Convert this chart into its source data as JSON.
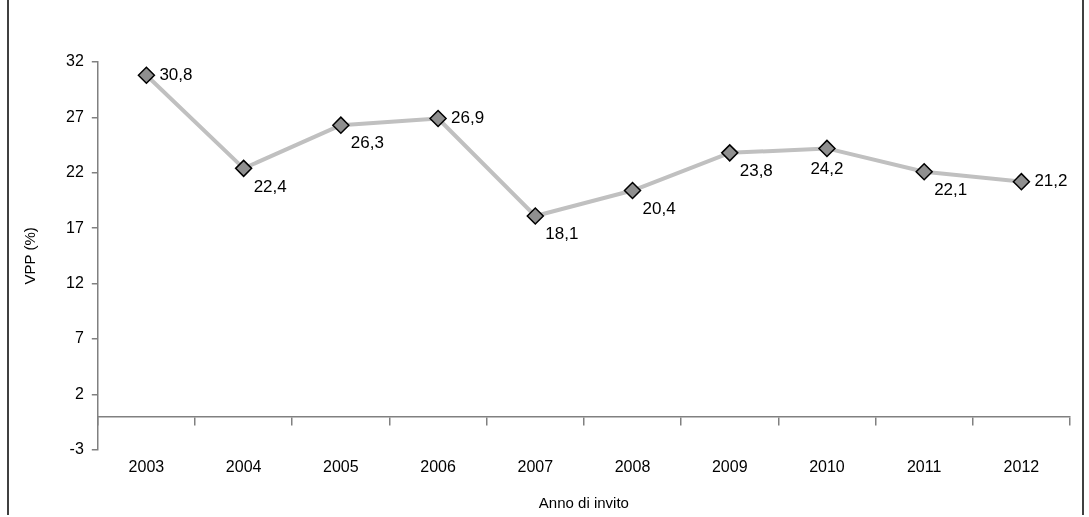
{
  "chart_data": {
    "type": "line",
    "xlabel": "Anno di invito",
    "ylabel": "VPP (%)",
    "categories": [
      "2003",
      "2004",
      "2005",
      "2006",
      "2007",
      "2008",
      "2009",
      "2010",
      "2011",
      "2012"
    ],
    "series": [
      {
        "color": "#c0c0c0",
        "values": [
          30.8,
          22.4,
          26.3,
          26.9,
          18.1,
          20.4,
          23.8,
          24.2,
          22.1,
          21.2
        ],
        "value_labels": [
          "30,8",
          "22,4",
          "26,3",
          "26,9",
          "18,1",
          "20,4",
          "23,8",
          "24,2",
          "22,1",
          "21,2"
        ]
      }
    ],
    "ylim": [
      -3,
      32
    ],
    "yticks": [
      -3,
      2,
      7,
      12,
      17,
      22,
      27,
      32
    ],
    "grid": false,
    "legend": false,
    "marker": "diamond",
    "line_style": "solid"
  }
}
